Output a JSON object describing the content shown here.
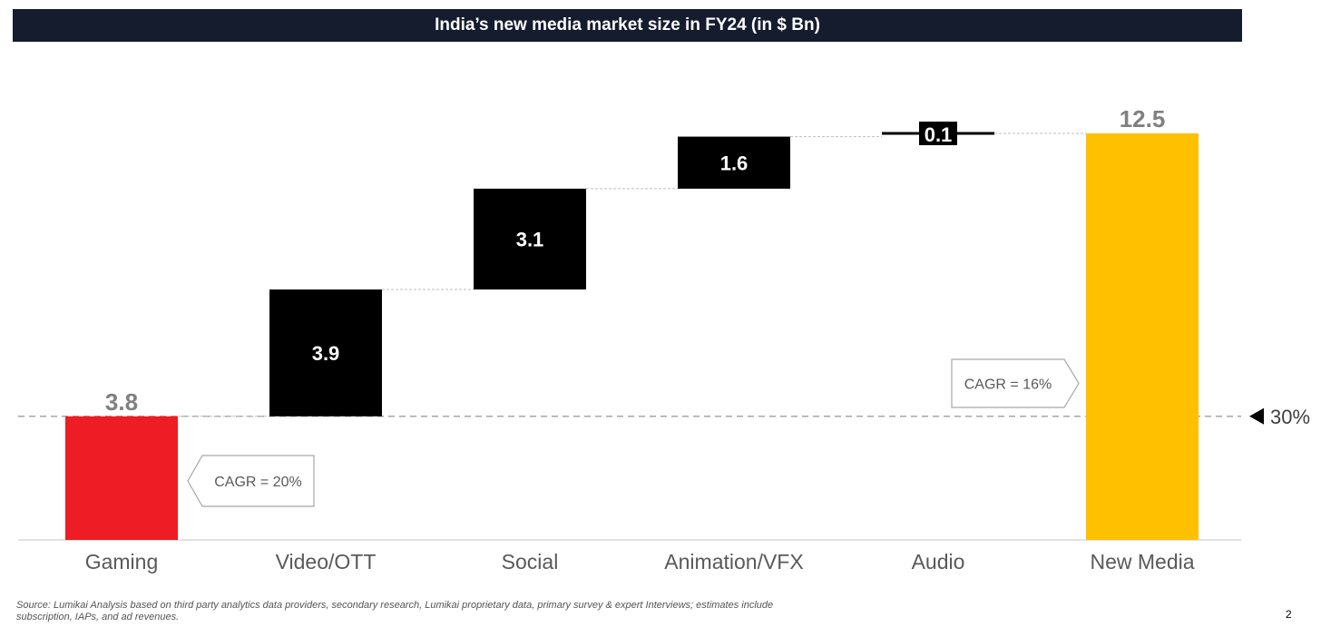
{
  "title": "India’s new media market size in FY24 (in $ Bn)",
  "chart_data": {
    "type": "waterfall",
    "title": "India’s new media market size in FY24 (in $ Bn)",
    "categories": [
      "Gaming",
      "Video/OTT",
      "Social",
      "Animation/VFX",
      "Audio",
      "New Media"
    ],
    "values": [
      3.8,
      3.9,
      3.1,
      1.6,
      0.1,
      12.5
    ],
    "value_labels": [
      "3.8",
      "3.9",
      "3.1",
      "1.6",
      "0.1",
      "12.5"
    ],
    "bar_kinds": [
      "start",
      "step",
      "step",
      "step",
      "step",
      "total"
    ],
    "ylim": [
      0,
      12.5
    ],
    "colors": {
      "start": "#ee1c24",
      "step": "#000000",
      "total": "#ffc000",
      "start_label": "#808080",
      "total_label": "#808080",
      "step_label": "#ffffff"
    },
    "annotations": [
      {
        "text": "CAGR = 20%",
        "category": "Gaming",
        "pointer": "left"
      },
      {
        "text": "CAGR = 16%",
        "category": "New Media",
        "pointer": "right"
      }
    ],
    "reference_line": {
      "value": 3.8,
      "label": "30%"
    }
  },
  "footnote": "Source: Lumikai Analysis based on third party analytics data providers, secondary research, Lumikai proprietary data, primary survey & expert Interviews; estimates include subscription, IAPs, and ad revenues.",
  "page_number": "2"
}
